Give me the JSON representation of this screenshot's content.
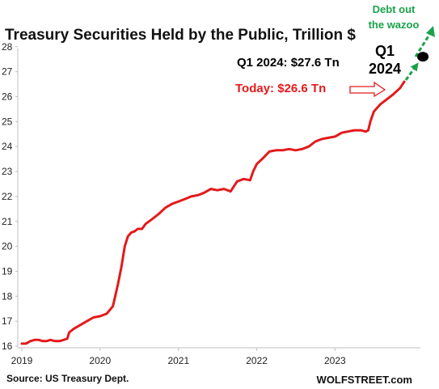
{
  "chart_data": {
    "type": "line",
    "title": "Treasury Securities Held by the Public, Trillion $",
    "xlabel": "",
    "ylabel": "",
    "ylim": [
      16,
      28
    ],
    "xlim": [
      "2019-01-01",
      "2023-11-20"
    ],
    "yticks": [
      "16",
      "17",
      "18",
      "19",
      "20",
      "21",
      "22",
      "23",
      "24",
      "25",
      "26",
      "27",
      "28"
    ],
    "xticks": [
      "2019",
      "2020",
      "2021",
      "2022",
      "2023"
    ],
    "grid": false,
    "series": [
      {
        "color": "#e31a1c",
        "x": [
          "2019-01-01",
          "2019-01-20",
          "2019-02-10",
          "2019-03-01",
          "2019-03-20",
          "2019-04-10",
          "2019-04-25",
          "2019-05-15",
          "2019-06-05",
          "2019-06-25",
          "2019-07-15",
          "2019-08-01",
          "2019-08-10",
          "2019-09-01",
          "2019-10-01",
          "2019-11-01",
          "2019-12-01",
          "2020-01-01",
          "2020-02-01",
          "2020-03-01",
          "2020-03-25",
          "2020-04-10",
          "2020-04-25",
          "2020-05-10",
          "2020-05-25",
          "2020-06-10",
          "2020-06-25",
          "2020-07-15",
          "2020-08-01",
          "2020-09-01",
          "2020-10-01",
          "2020-11-01",
          "2020-12-01",
          "2021-01-01",
          "2021-02-01",
          "2021-03-01",
          "2021-04-01",
          "2021-05-01",
          "2021-06-01",
          "2021-07-01",
          "2021-08-01",
          "2021-09-01",
          "2021-10-01",
          "2021-11-01",
          "2021-12-01",
          "2021-12-15",
          "2022-01-01",
          "2022-02-01",
          "2022-03-01",
          "2022-04-01",
          "2022-05-01",
          "2022-06-01",
          "2022-07-01",
          "2022-08-01",
          "2022-09-01",
          "2022-10-01",
          "2022-11-01",
          "2022-12-01",
          "2023-01-01",
          "2023-02-01",
          "2023-03-01",
          "2023-04-01",
          "2023-05-01",
          "2023-05-25",
          "2023-06-05",
          "2023-06-15",
          "2023-07-01",
          "2023-08-01",
          "2023-09-01",
          "2023-10-01",
          "2023-11-01",
          "2023-11-20"
        ],
        "values": [
          16.1,
          16.1,
          16.2,
          16.25,
          16.25,
          16.2,
          16.2,
          16.25,
          16.2,
          16.2,
          16.25,
          16.3,
          16.55,
          16.7,
          16.85,
          17.0,
          17.15,
          17.2,
          17.3,
          17.6,
          18.5,
          19.2,
          20.0,
          20.4,
          20.55,
          20.6,
          20.7,
          20.7,
          20.9,
          21.1,
          21.3,
          21.55,
          21.7,
          21.8,
          21.9,
          22.0,
          22.05,
          22.15,
          22.3,
          22.25,
          22.3,
          22.2,
          22.6,
          22.7,
          22.65,
          23.0,
          23.3,
          23.55,
          23.8,
          23.85,
          23.85,
          23.9,
          23.85,
          23.9,
          24.0,
          24.2,
          24.3,
          24.35,
          24.4,
          24.55,
          24.6,
          24.65,
          24.65,
          24.6,
          24.65,
          25.0,
          25.4,
          25.7,
          25.9,
          26.1,
          26.35,
          26.6
        ]
      }
    ],
    "annotations": {
      "today_label": "Today: $26.6 Tn",
      "q1_label": "Q1 2024: $27.6 Tn",
      "q1_marker_line1": "Q1",
      "q1_marker_line2": "2024",
      "wazoo_line1": "Debt out",
      "wazoo_line2": "the wazoo",
      "projection_point": {
        "x": "2024-02-15",
        "y": 27.6
      }
    },
    "source": "Source: US Treasury Dept.",
    "brand": "WOLFSTREET.com"
  },
  "colors": {
    "series": "#e31a1c",
    "projection": "#1aa34a",
    "axis": "#bfbfbf"
  }
}
